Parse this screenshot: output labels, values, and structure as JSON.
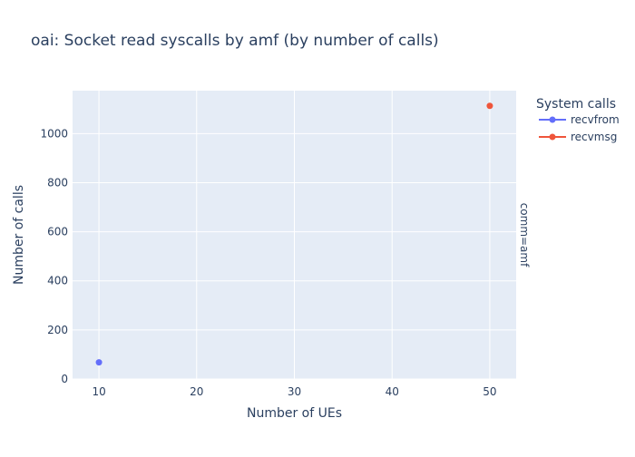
{
  "chart_data": {
    "type": "scatter",
    "title": "oai: Socket read syscalls by amf (by number of calls)",
    "xlabel": "Number of UEs",
    "ylabel": "Number of calls",
    "facet_label": "comm=amf",
    "legend_title": "System calls",
    "legend_position": "top-right, outside plot",
    "xlim": [
      7.3,
      52.7
    ],
    "ylim": [
      0,
      1175
    ],
    "xticks": [
      10,
      20,
      30,
      40,
      50
    ],
    "yticks": [
      0,
      200,
      400,
      600,
      800,
      1000
    ],
    "grid": true,
    "series": [
      {
        "name": "recvfrom",
        "color": "#636efa",
        "x": [
          10
        ],
        "y": [
          68
        ]
      },
      {
        "name": "recvmsg",
        "color": "#ef553b",
        "x": [
          50
        ],
        "y": [
          1113
        ]
      }
    ]
  }
}
